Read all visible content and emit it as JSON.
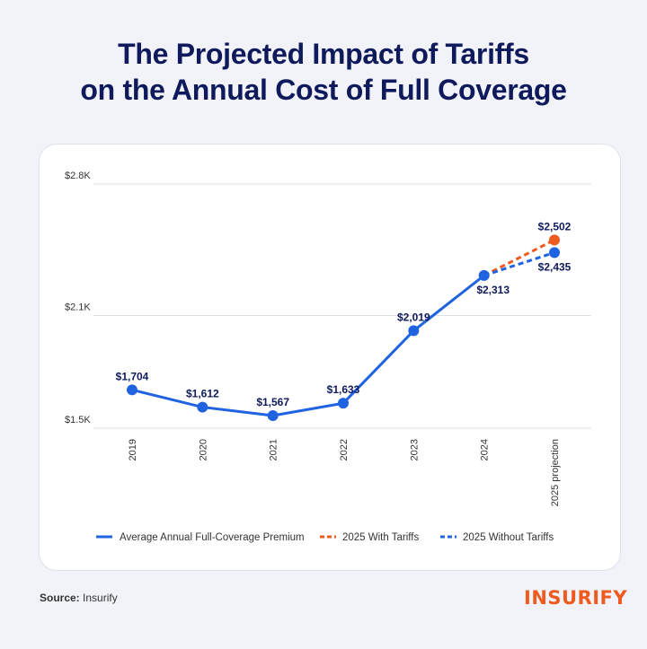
{
  "title_line1": "The Projected Impact of Tariffs",
  "title_line2": "on the Annual Cost of Full Coverage",
  "source_label": "Source:",
  "source_value": "Insurify",
  "logo_text": "INSURIFY",
  "colors": {
    "title": "#0f1a5c",
    "main_series": "#1f63e0",
    "with_tariffs": "#ef5a1e",
    "without_tariffs": "#1f63e0",
    "point_label": "#0f1a5c",
    "grid": "#dcdfe6"
  },
  "chart_data": {
    "type": "line",
    "categories": [
      "2019",
      "2020",
      "2021",
      "2022",
      "2023",
      "2024",
      "2025 projection"
    ],
    "ylim": [
      1500,
      2800
    ],
    "yticks": [
      {
        "value": 1500,
        "label": "$1.5K"
      },
      {
        "value": 2100,
        "label": "$2.1K"
      },
      {
        "value": 2800,
        "label": "$2.8K"
      }
    ],
    "grid": true,
    "legend_position": "bottom",
    "series": [
      {
        "name": "Average Annual Full-Coverage Premium",
        "style": "solid",
        "values": [
          1704,
          1612,
          1567,
          1633,
          2019,
          2313,
          null
        ],
        "labels": [
          "$1,704",
          "$1,612",
          "$1,567",
          "$1,633",
          "$2,019",
          "$2,313",
          ""
        ]
      },
      {
        "name": "2025 With Tariffs",
        "style": "dashed",
        "values": [
          null,
          null,
          null,
          null,
          null,
          2313,
          2502
        ],
        "labels": [
          "",
          "",
          "",
          "",
          "",
          "",
          "$2,502"
        ]
      },
      {
        "name": "2025 Without Tariffs",
        "style": "dashed",
        "values": [
          null,
          null,
          null,
          null,
          null,
          2313,
          2435
        ],
        "labels": [
          "",
          "",
          "",
          "",
          "",
          "",
          "$2,435"
        ]
      }
    ]
  }
}
